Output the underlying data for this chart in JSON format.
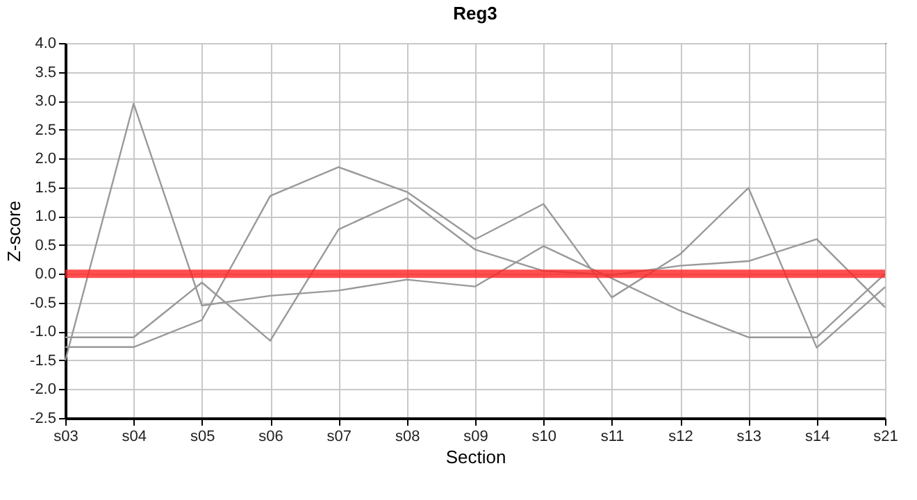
{
  "chart_data": {
    "type": "line",
    "title": "Reg3",
    "xlabel": "Section",
    "ylabel": "Z-score",
    "categories": [
      "s03",
      "s04",
      "s05",
      "s06",
      "s07",
      "s08",
      "s09",
      "s10",
      "s11",
      "s12",
      "s13",
      "s14",
      "s21"
    ],
    "series": [
      {
        "color": "#999999",
        "values": [
          -1.5,
          2.95,
          -0.55,
          -0.38,
          -0.29,
          -0.1,
          -0.22,
          0.48,
          -0.08,
          -0.64,
          -1.1,
          -1.1,
          0
        ]
      },
      {
        "color": "#999999",
        "values": [
          -1.1,
          -1.1,
          -0.15,
          -1.16,
          0.77,
          1.31,
          0.42,
          0.05,
          -0.02,
          0.14,
          0.22,
          0.6,
          -0.58
        ]
      },
      {
        "color": "#999999",
        "values": [
          -1.27,
          -1.27,
          -0.8,
          1.35,
          1.85,
          1.42,
          0.6,
          1.21,
          -0.41,
          0.34,
          1.49,
          -1.28,
          -0.23
        ]
      }
    ],
    "ylim": [
      -2.5,
      4
    ],
    "yticks": [
      -2.5,
      {
        "value": -2,
        "label": "-2.0"
      },
      -1.5,
      {
        "value": -1,
        "label": "-1.0"
      },
      -0.5,
      {
        "value": 0,
        "label": "0.0"
      },
      0.5,
      {
        "value": 1,
        "label": "1.0"
      },
      1.5,
      {
        "value": 2,
        "label": "2.0"
      },
      2.5,
      {
        "value": 3,
        "label": "3.0"
      },
      3.5,
      {
        "value": 4,
        "label": "4.0"
      }
    ],
    "grid": true,
    "ref_lines": [
      {
        "axis": "y",
        "value": 0,
        "color": "#ff2222"
      }
    ]
  }
}
